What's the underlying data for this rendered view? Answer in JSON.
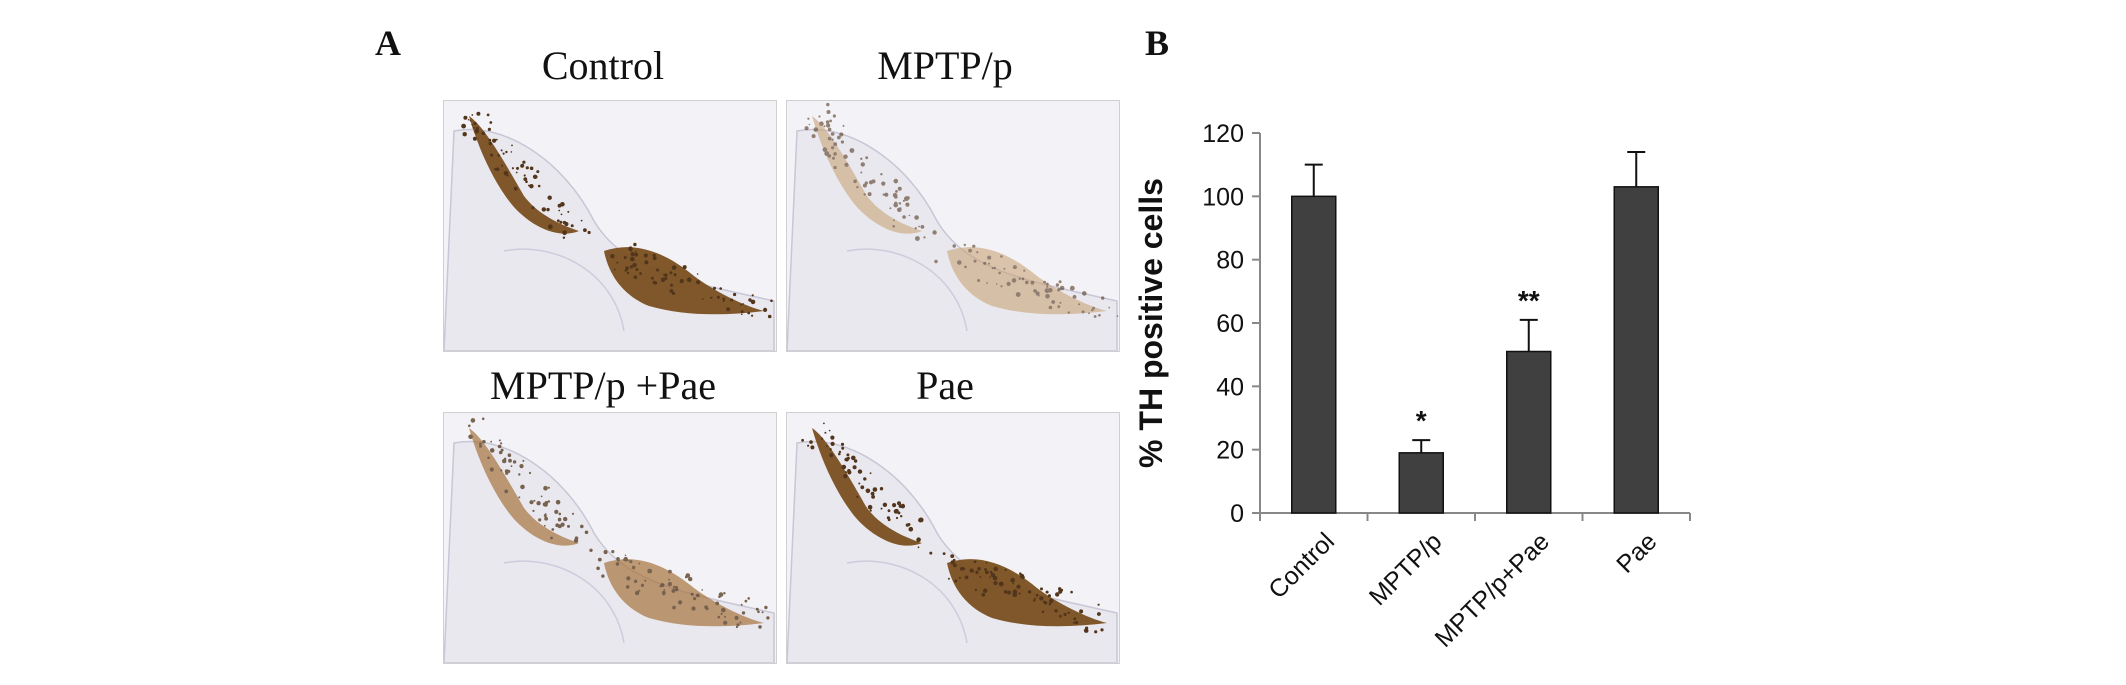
{
  "panel_a": {
    "letter": "A",
    "images": [
      {
        "title": "Control",
        "stain_color": "#7a5020",
        "stain_level": 1.0
      },
      {
        "title": "MPTP/p",
        "stain_color": "#c8a070",
        "stain_level": 0.35
      },
      {
        "title": "MPTP/p +Pae",
        "stain_color": "#a87540",
        "stain_level": 0.6
      },
      {
        "title": "Pae",
        "stain_color": "#7a5020",
        "stain_level": 1.0
      }
    ]
  },
  "panel_b": {
    "letter": "B"
  },
  "chart_data": {
    "type": "bar",
    "title": "",
    "xlabel": "",
    "ylabel": "% TH positive cells",
    "ylim": [
      0,
      120
    ],
    "yticks": [
      0,
      20,
      40,
      60,
      80,
      100,
      120
    ],
    "categories": [
      "Control",
      "MPTP/p",
      "MPTP/p+Pae",
      "Pae"
    ],
    "values": [
      100,
      19,
      51,
      103
    ],
    "errors": [
      10,
      4,
      10,
      11
    ],
    "annotations": [
      "",
      "*",
      "**",
      ""
    ],
    "bar_color": "#404040",
    "grid": false
  }
}
